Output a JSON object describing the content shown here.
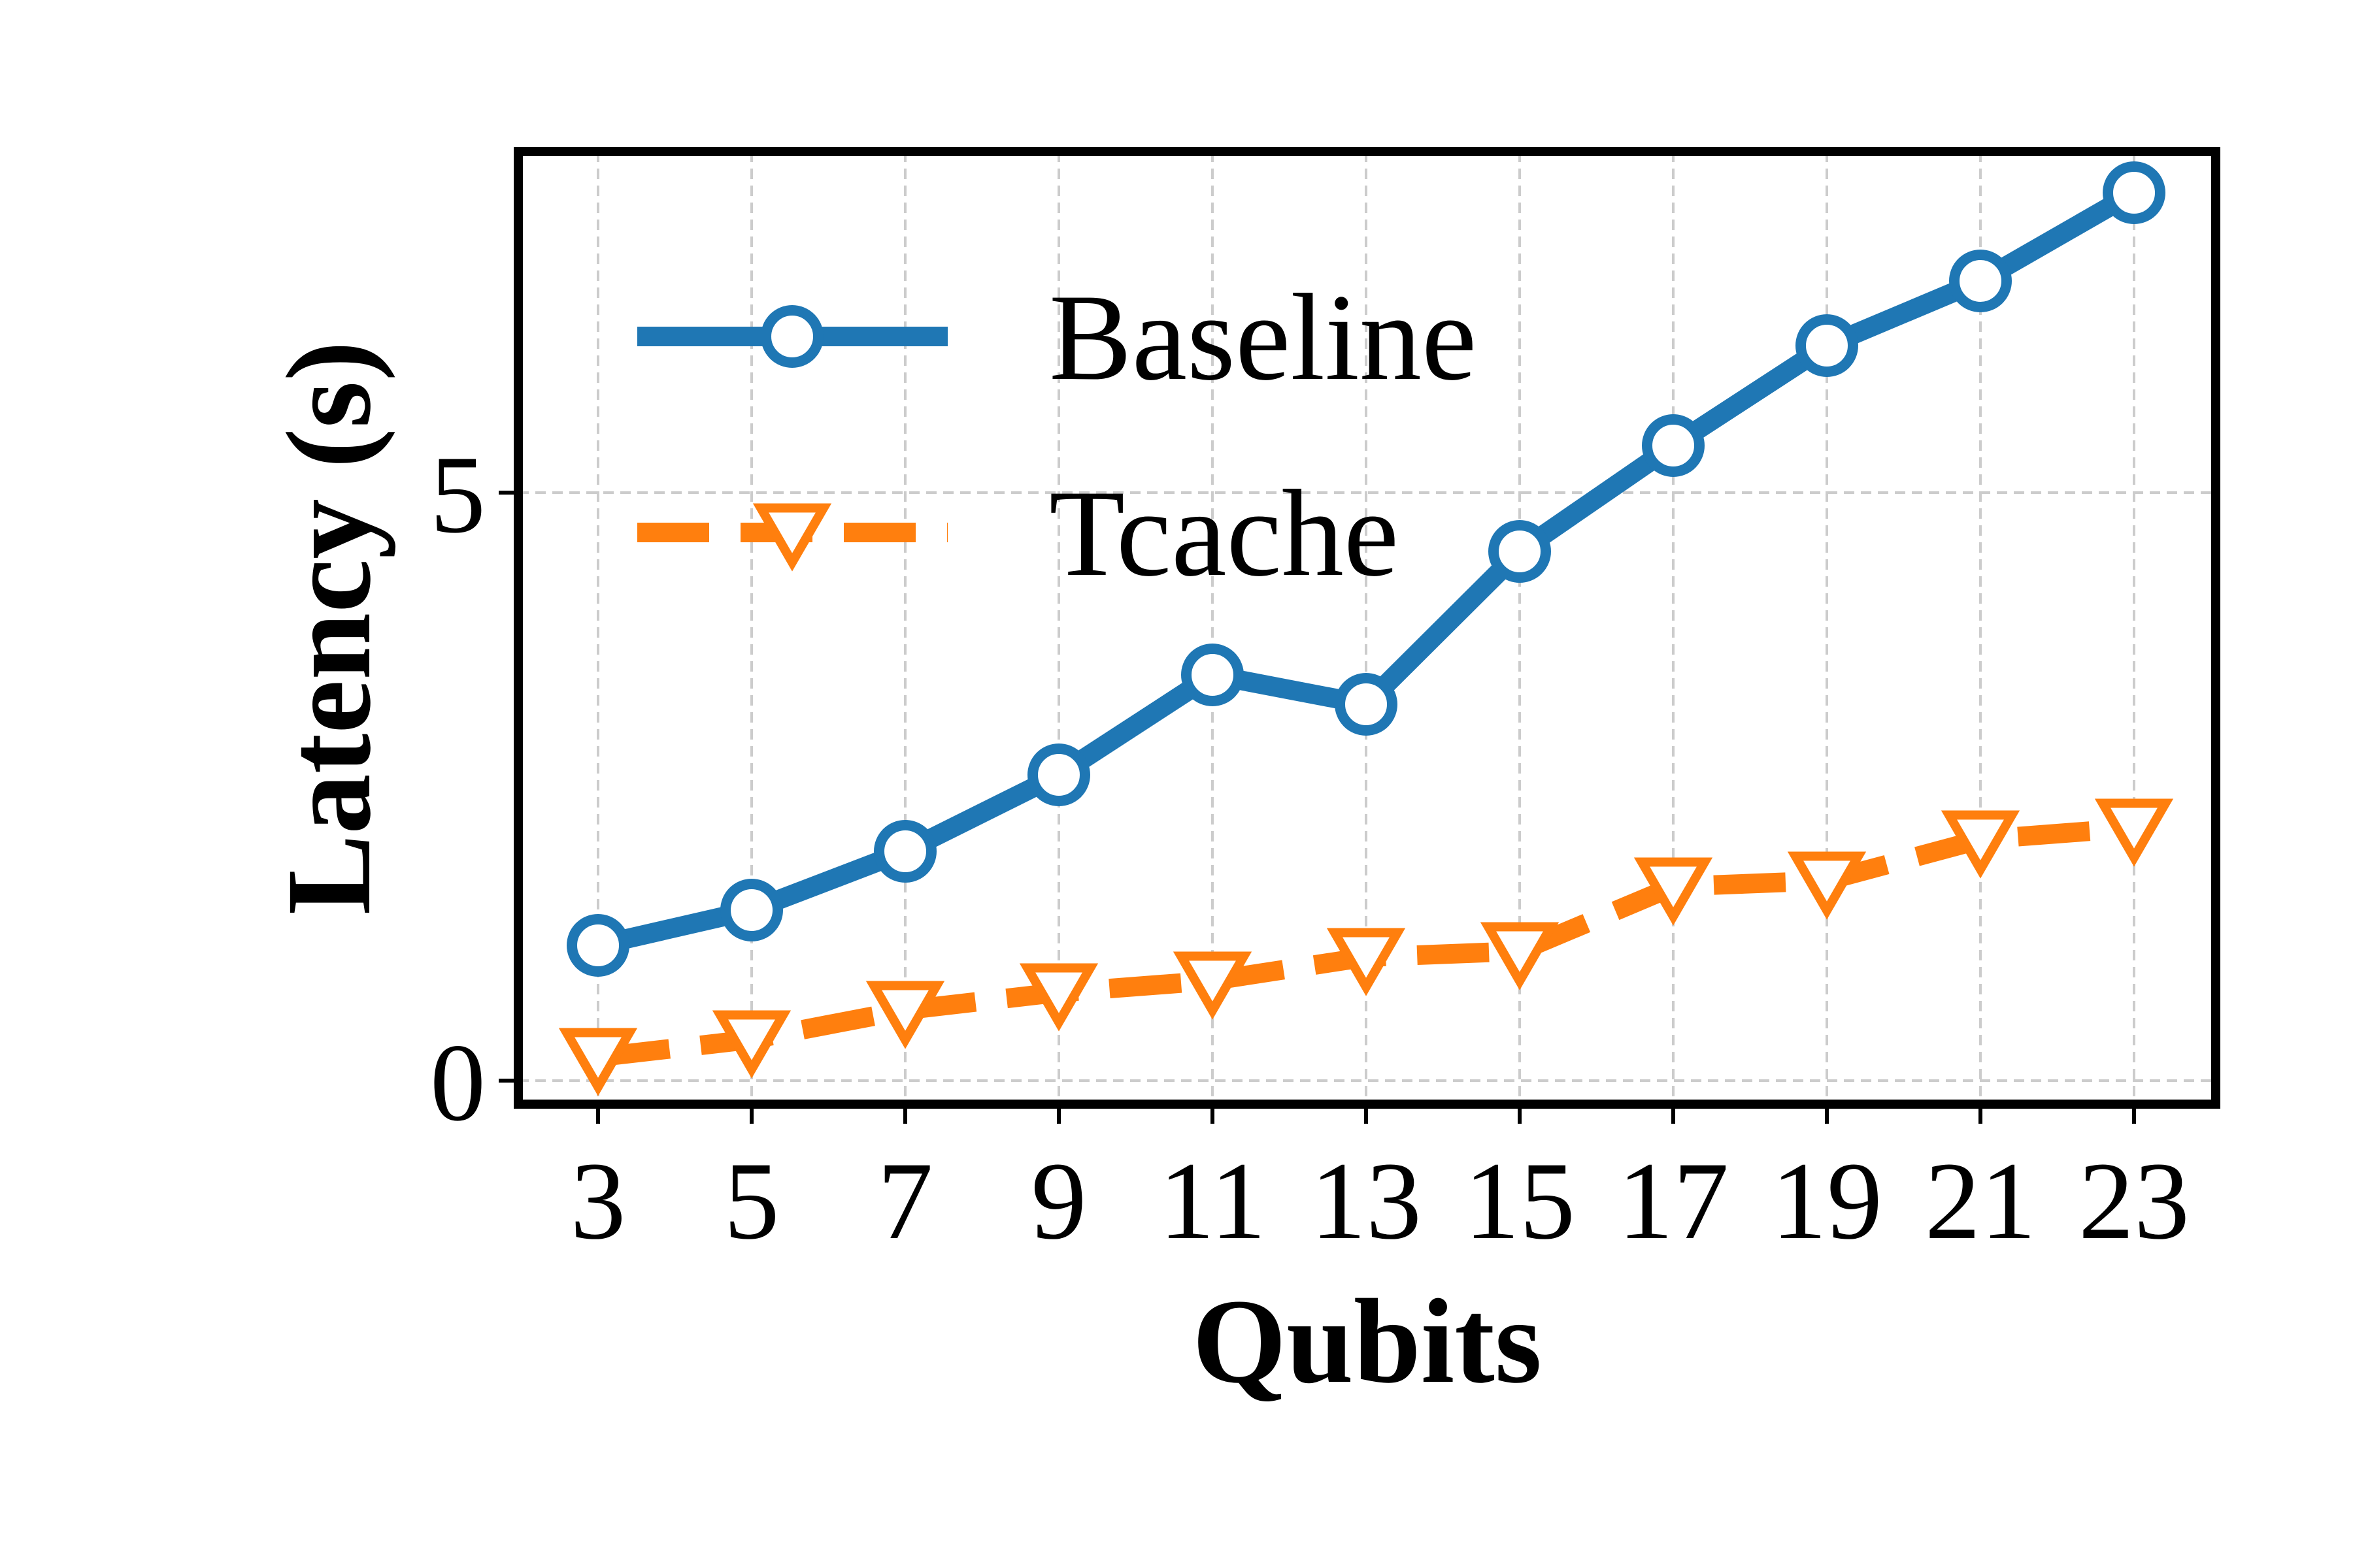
{
  "chart_data": {
    "type": "line",
    "title": "",
    "xlabel": "Qubits",
    "ylabel": "Latency (s)",
    "categories": [
      "3",
      "5",
      "7",
      "9",
      "11",
      "13",
      "15",
      "17",
      "19",
      "21",
      "23"
    ],
    "ylim": [
      -0.2,
      7.9
    ],
    "yticks": [
      "0",
      "5"
    ],
    "grid": true,
    "legend_position": "upper left",
    "series": [
      {
        "name": "Baseline",
        "marker": "circle",
        "line_style": "solid",
        "color": "#1f77b4",
        "values": [
          1.15,
          1.45,
          1.95,
          2.6,
          3.45,
          3.2,
          4.5,
          5.4,
          6.25,
          6.8,
          7.55
        ]
      },
      {
        "name": "Tcache",
        "marker": "triangle-down",
        "line_style": "dashed",
        "color": "#ff7f0e",
        "values": [
          0.2,
          0.35,
          0.6,
          0.75,
          0.85,
          1.05,
          1.1,
          1.65,
          1.7,
          2.05,
          2.15
        ]
      }
    ]
  }
}
